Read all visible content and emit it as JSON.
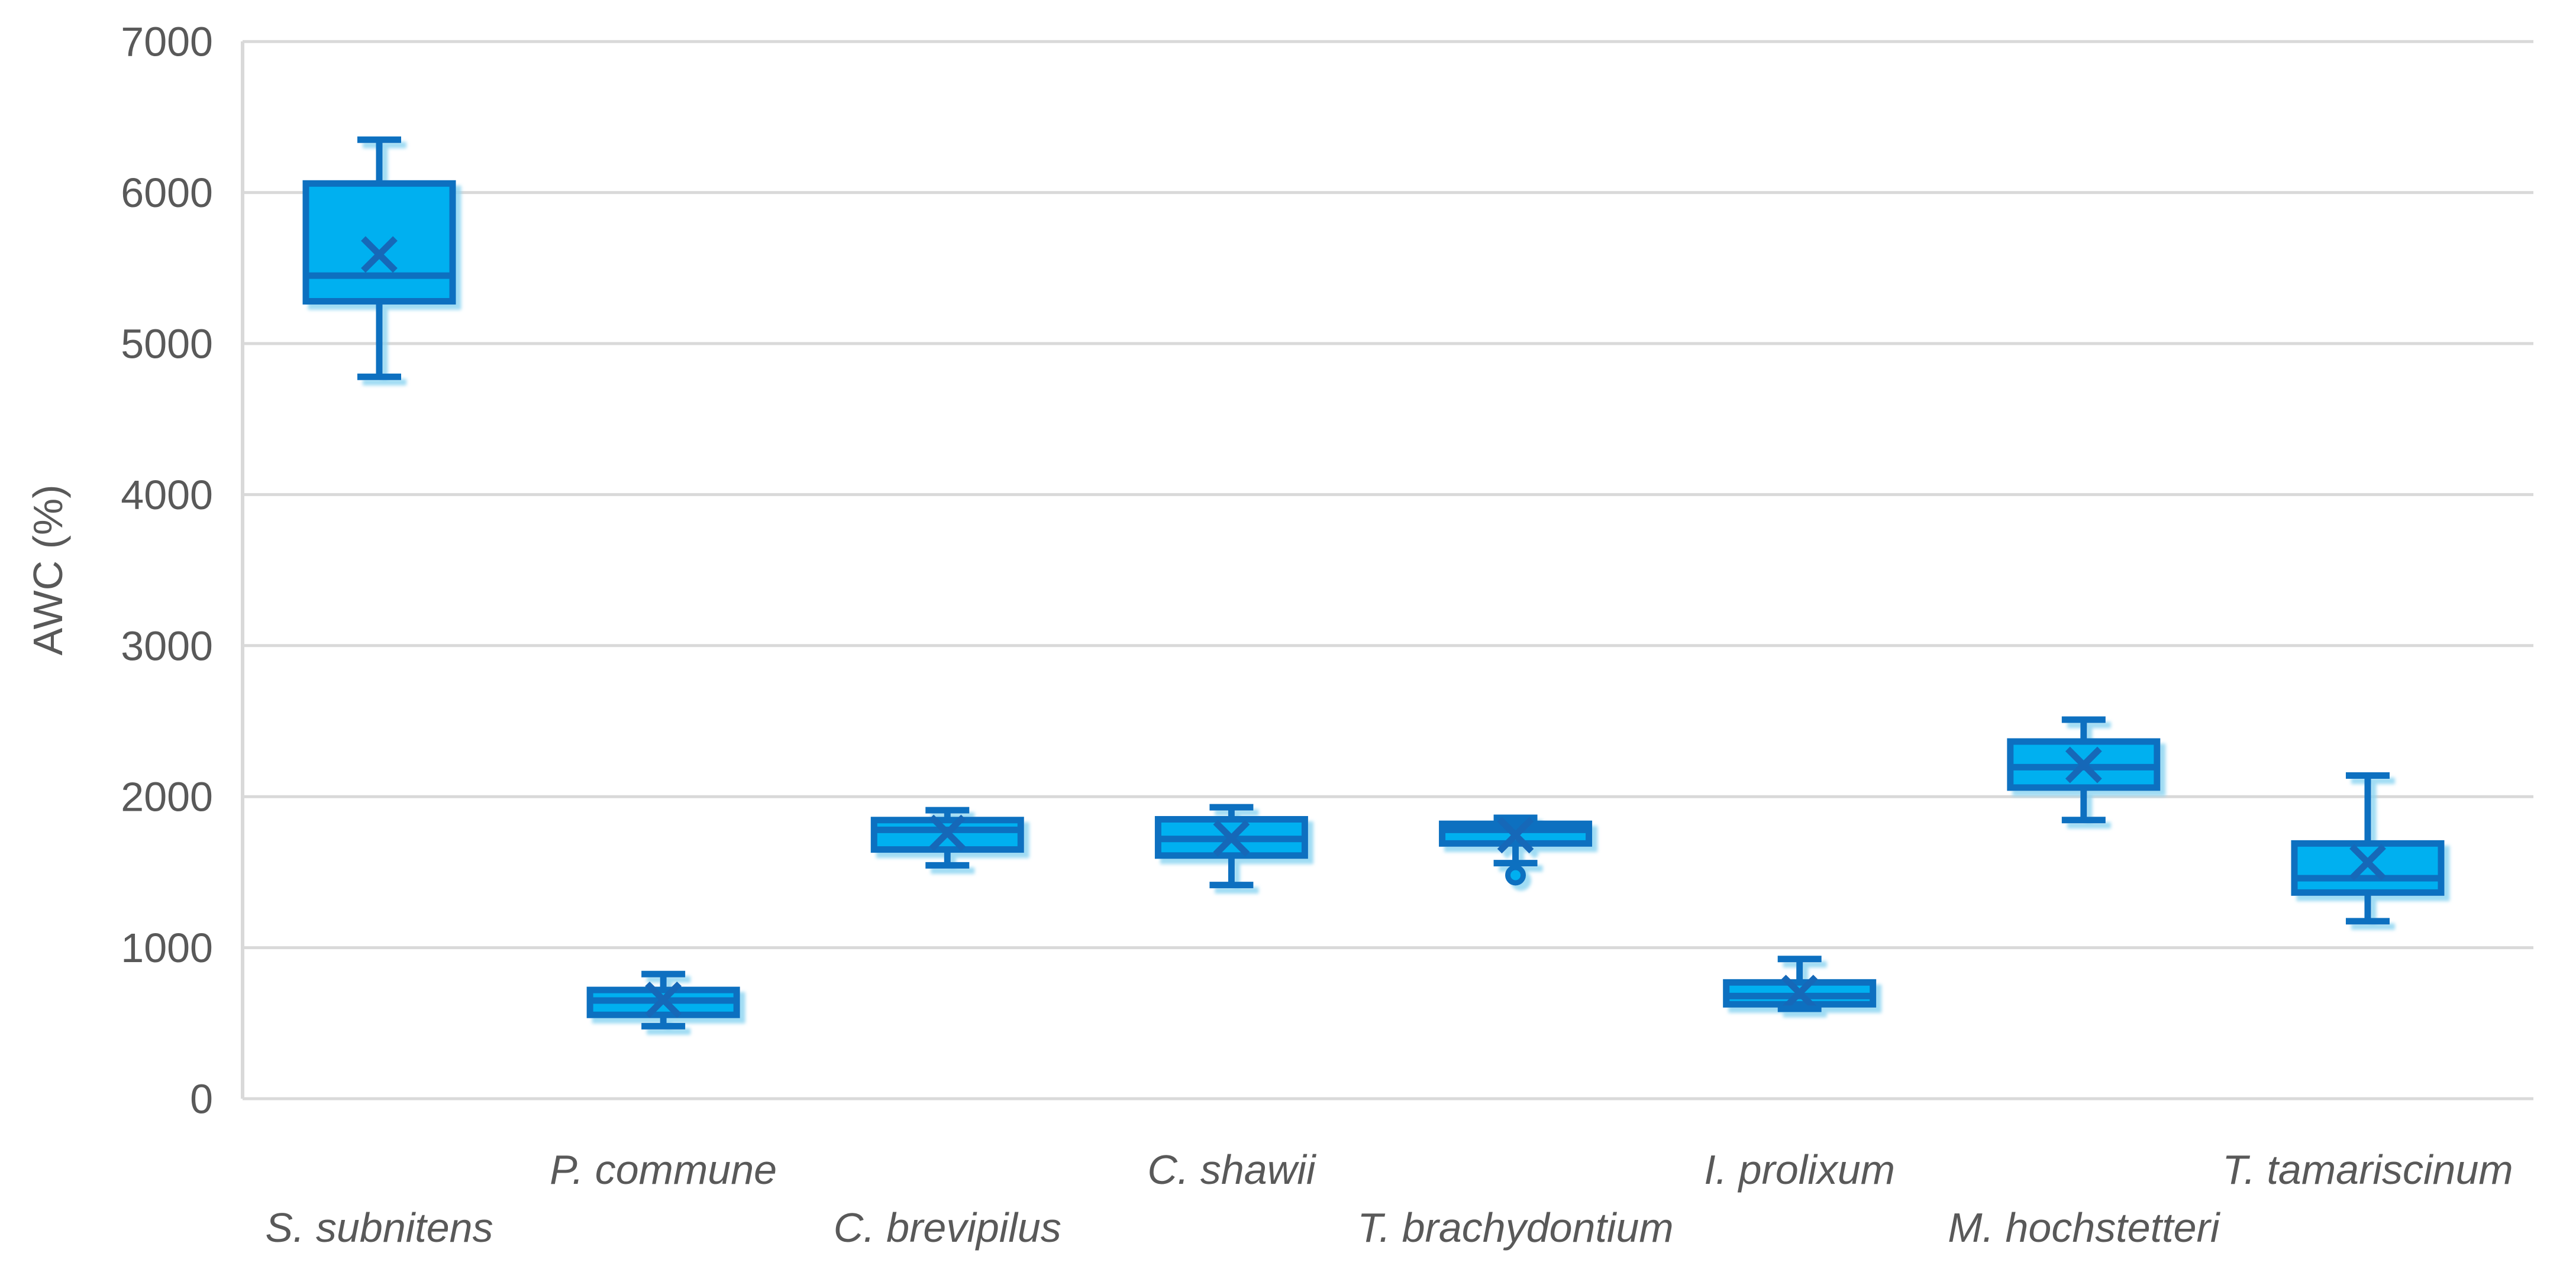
{
  "chart_data": {
    "type": "box",
    "title": "",
    "xlabel": "",
    "ylabel": "AWC (%)",
    "ylim": [
      0,
      7000
    ],
    "yticks": [
      0,
      1000,
      2000,
      3000,
      4000,
      5000,
      6000,
      7000
    ],
    "grid": true,
    "legend": false,
    "categories": [
      "S. subnitens",
      "P. commune",
      "C. brevipilus",
      "C. shawii",
      "T. brachydontium",
      "I. prolixum",
      "M. hochstetteri",
      "T. tamariscinum"
    ],
    "series": [
      {
        "name": "S. subnitens",
        "min": 4780,
        "q1": 5280,
        "median": 5450,
        "mean": 5590,
        "q3": 6060,
        "max": 6350,
        "outliers": []
      },
      {
        "name": "P. commune",
        "min": 480,
        "q1": 555,
        "median": 650,
        "mean": 655,
        "q3": 720,
        "max": 825,
        "outliers": []
      },
      {
        "name": "C. brevipilus",
        "min": 1545,
        "q1": 1650,
        "median": 1780,
        "mean": 1760,
        "q3": 1845,
        "max": 1910,
        "outliers": []
      },
      {
        "name": "C. shawii",
        "min": 1415,
        "q1": 1610,
        "median": 1720,
        "mean": 1725,
        "q3": 1850,
        "max": 1930,
        "outliers": []
      },
      {
        "name": "T. brachydontium",
        "min": 1560,
        "q1": 1690,
        "median": 1780,
        "mean": 1745,
        "q3": 1820,
        "max": 1860,
        "outliers": [
          1480
        ]
      },
      {
        "name": "I. prolixum",
        "min": 595,
        "q1": 625,
        "median": 680,
        "mean": 700,
        "q3": 770,
        "max": 925,
        "outliers": []
      },
      {
        "name": "M. hochstetteri",
        "min": 1845,
        "q1": 2060,
        "median": 2195,
        "mean": 2210,
        "q3": 2365,
        "max": 2510,
        "outliers": []
      },
      {
        "name": "T. tamariscinum",
        "min": 1175,
        "q1": 1365,
        "median": 1460,
        "mean": 1565,
        "q3": 1690,
        "max": 2140,
        "outliers": []
      }
    ],
    "colors": {
      "box_fill": "#00B0F0",
      "box_stroke": "#0B70C0",
      "mean_marker": "#1568B8",
      "gridline": "#D9D9D9",
      "axis_line": "#D9D9D9",
      "text": "#595959",
      "shadow": "#8ED5F2",
      "background": "#FFFFFF"
    }
  }
}
